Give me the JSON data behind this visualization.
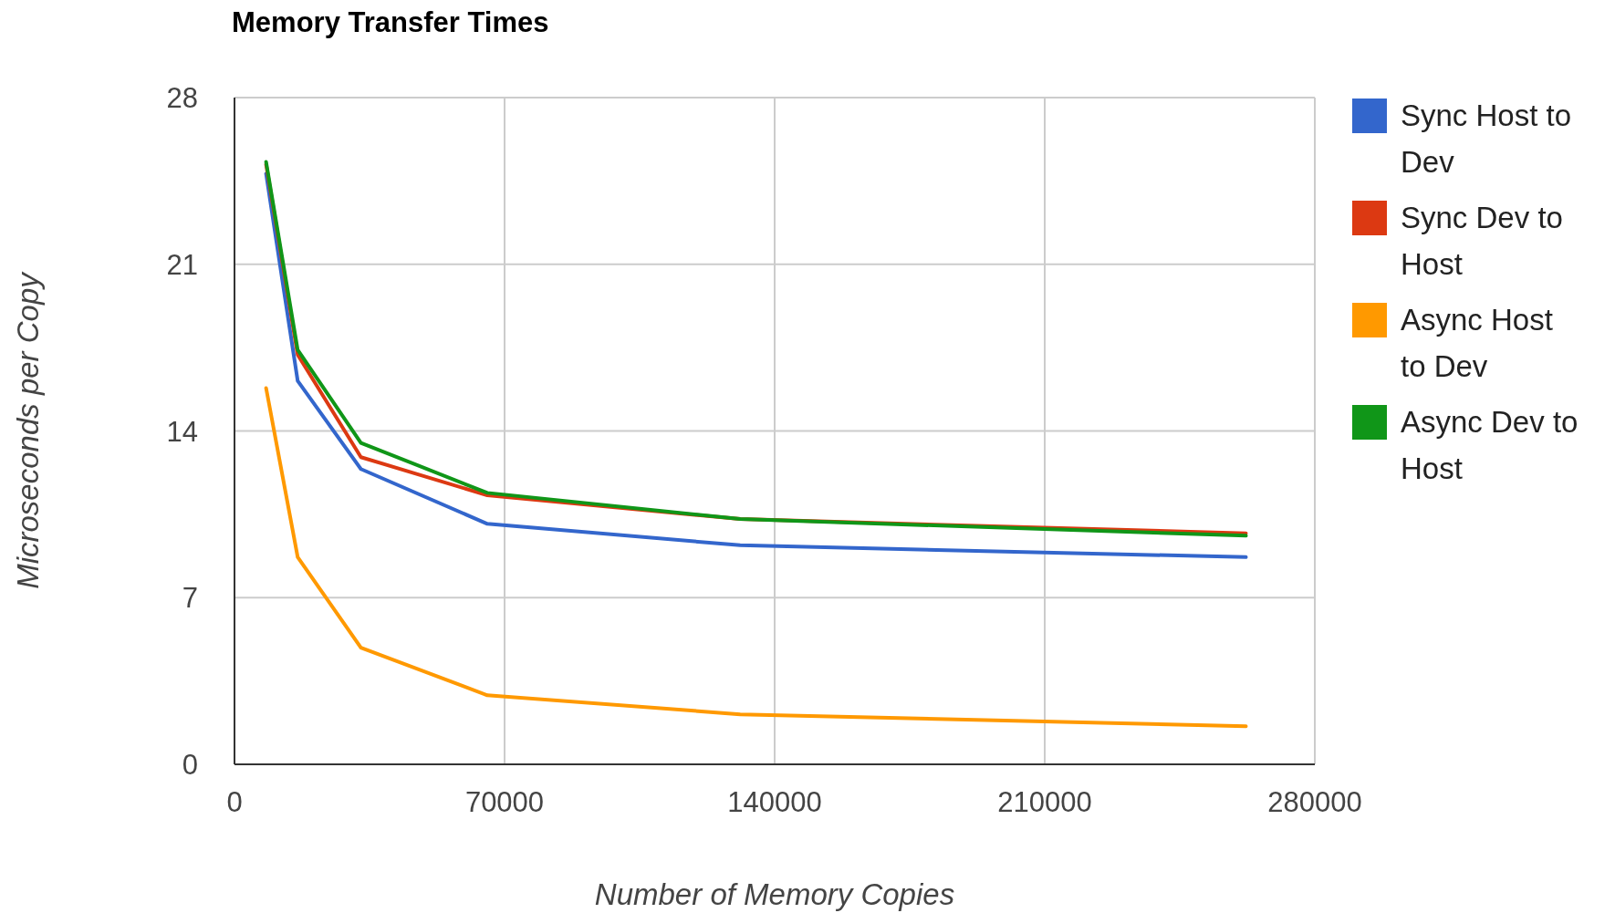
{
  "chart_data": {
    "type": "line",
    "title": "Memory Transfer Times",
    "xlabel": "Number of Memory Copies",
    "ylabel": "Microseconds per Copy",
    "x": [
      8192,
      16384,
      32768,
      65536,
      131072,
      262144
    ],
    "series": [
      {
        "name": "Sync Host to Dev",
        "color": "#3366cc",
        "values": [
          24.8,
          16.1,
          12.4,
          10.1,
          9.2,
          8.7
        ]
      },
      {
        "name": "Sync Dev to Host",
        "color": "#dc3912",
        "values": [
          25.2,
          17.2,
          12.9,
          11.3,
          10.3,
          9.7
        ]
      },
      {
        "name": "Async Host to Dev",
        "color": "#ff9900",
        "values": [
          15.8,
          8.7,
          4.9,
          2.9,
          2.1,
          1.6
        ]
      },
      {
        "name": "Async Dev to Host",
        "color": "#109618",
        "values": [
          25.3,
          17.4,
          13.5,
          11.4,
          10.3,
          9.6
        ]
      }
    ],
    "xlim": [
      0,
      280000
    ],
    "xticks": [
      0,
      70000,
      140000,
      210000,
      280000
    ],
    "ylim": [
      0,
      28
    ],
    "yticks": [
      0,
      7,
      14,
      21,
      28
    ],
    "grid": true,
    "legend": "right",
    "marker": "none",
    "line_style": "solid"
  }
}
